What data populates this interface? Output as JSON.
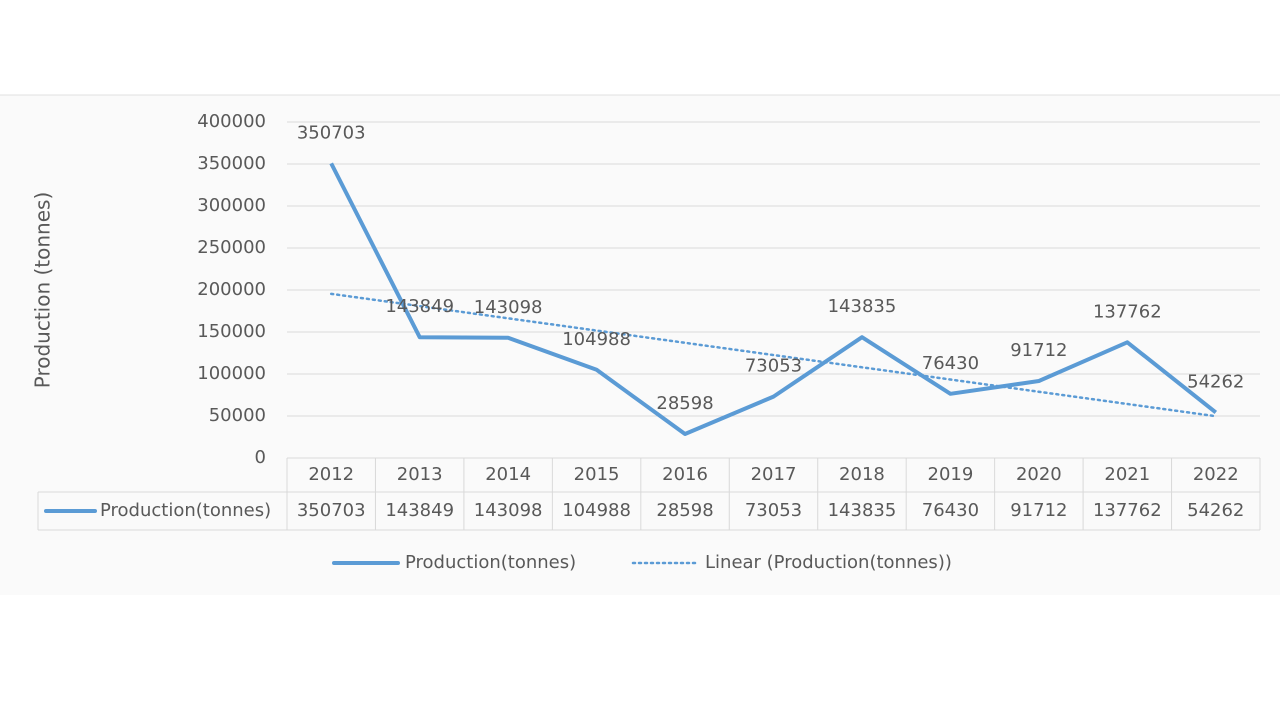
{
  "chart_data": {
    "type": "line",
    "y_label": "Production (tonnes)",
    "categories": [
      "2012",
      "2013",
      "2014",
      "2015",
      "2016",
      "2017",
      "2018",
      "2019",
      "2020",
      "2021",
      "2022"
    ],
    "series": [
      {
        "name": "Production(tonnes)",
        "color": "#5b9bd5",
        "values": [
          350703,
          143849,
          143098,
          104988,
          28598,
          73053,
          143835,
          76430,
          91712,
          137762,
          54262
        ]
      }
    ],
    "trendline": {
      "name": "Linear (Production(tonnes))",
      "type": "linear",
      "color": "#5b9bd5",
      "style": "dotted"
    },
    "ylim": [
      0,
      400000
    ],
    "yticks": [
      0,
      50000,
      100000,
      150000,
      200000,
      250000,
      300000,
      350000,
      400000
    ],
    "grid": true,
    "data_labels": true,
    "data_table": true,
    "legend": "bottom"
  }
}
